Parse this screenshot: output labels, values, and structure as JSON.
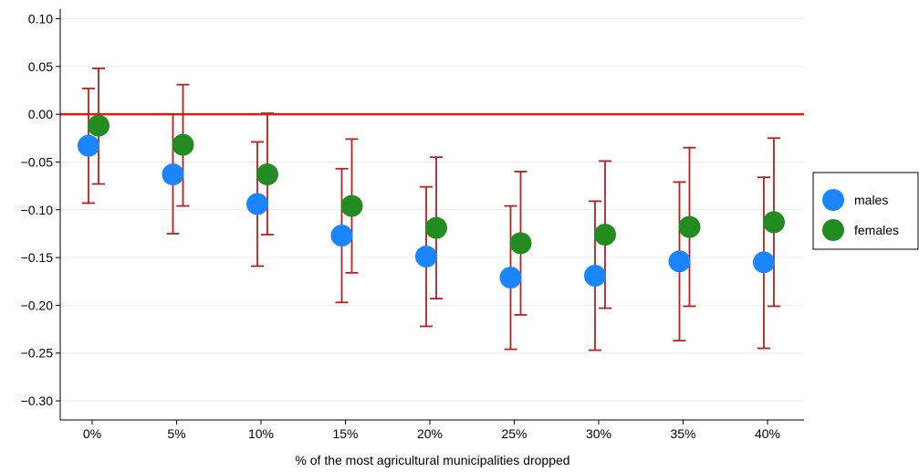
{
  "chart_data": {
    "type": "scatter",
    "title": "",
    "xlabel": "% of the most agricultural municipalities dropped",
    "ylabel": "",
    "categories": [
      "0%",
      "5%",
      "10%",
      "15%",
      "20%",
      "25%",
      "30%",
      "35%",
      "40%"
    ],
    "ylim": [
      -0.32,
      0.11
    ],
    "yticks": [
      0.1,
      0.05,
      0.0,
      -0.05,
      -0.1,
      -0.15,
      -0.2,
      -0.25,
      -0.3
    ],
    "ytick_labels": [
      "0.10",
      "0.05",
      "0.00",
      "−0.05",
      "−0.10",
      "−0.15",
      "−0.20",
      "−0.25",
      "−0.30"
    ],
    "reference_line": 0.0,
    "grid": "horizontal",
    "legend_position": "right",
    "series": [
      {
        "name": "males",
        "color": "#1a85ff",
        "values": [
          -0.033,
          -0.063,
          -0.094,
          -0.127,
          -0.149,
          -0.171,
          -0.169,
          -0.154,
          -0.155
        ],
        "ci_low": [
          -0.093,
          -0.125,
          -0.159,
          -0.197,
          -0.222,
          -0.246,
          -0.247,
          -0.237,
          -0.245
        ],
        "ci_high": [
          0.027,
          0.0,
          -0.029,
          -0.057,
          -0.076,
          -0.096,
          -0.091,
          -0.071,
          -0.066
        ]
      },
      {
        "name": "females",
        "color": "#228b22",
        "values": [
          -0.012,
          -0.032,
          -0.063,
          -0.096,
          -0.119,
          -0.135,
          -0.126,
          -0.118,
          -0.113
        ],
        "ci_low": [
          -0.073,
          -0.096,
          -0.126,
          -0.166,
          -0.193,
          -0.21,
          -0.203,
          -0.201,
          -0.201
        ],
        "ci_high": [
          0.048,
          0.031,
          0.001,
          -0.026,
          -0.045,
          -0.06,
          -0.049,
          -0.035,
          -0.025
        ]
      }
    ],
    "colors": {
      "errorbar": "#b22222",
      "reference_line": "#e8190c",
      "grid": "#ebebeb",
      "axis": "#000000"
    }
  }
}
